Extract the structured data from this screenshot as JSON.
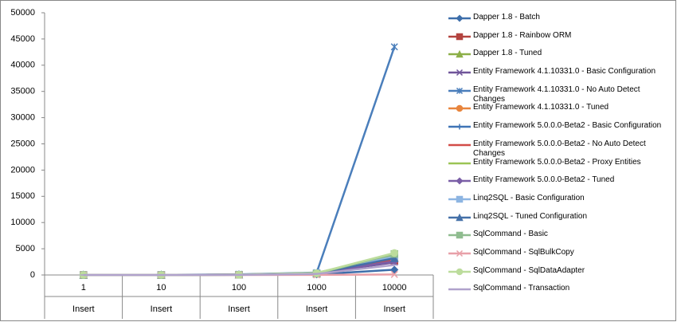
{
  "chart_data": {
    "type": "line",
    "categories": [
      "1",
      "10",
      "100",
      "1000",
      "10000"
    ],
    "category_groups": [
      "Insert",
      "Insert",
      "Insert",
      "Insert",
      "Insert"
    ],
    "ylim": [
      0,
      50000
    ],
    "yticks": [
      0,
      5000,
      10000,
      15000,
      20000,
      25000,
      30000,
      35000,
      40000,
      45000,
      50000
    ],
    "grid": false,
    "legend": "right",
    "series": [
      {
        "name": "Dapper 1.8 - Batch",
        "color": "#3d6eaa",
        "marker": "diamond",
        "values": [
          1,
          5,
          40,
          120,
          1000
        ]
      },
      {
        "name": "Dapper 1.8 - Rainbow ORM",
        "color": "#b3433f",
        "marker": "square",
        "values": [
          1,
          5,
          30,
          250,
          2700
        ]
      },
      {
        "name": "Dapper 1.8 - Tuned",
        "color": "#8caf48",
        "marker": "triangle",
        "values": [
          1,
          4,
          30,
          300,
          3300
        ]
      },
      {
        "name": "Entity Framework 4.1.10331.0 - Basic Configuration",
        "color": "#70559a",
        "marker": "x",
        "values": [
          2,
          10,
          60,
          350,
          2400
        ]
      },
      {
        "name": "Entity Framework 4.1.10331.0 - No Auto Detect Changes",
        "color": "#4a7ebb",
        "marker": "star",
        "values": [
          2,
          20,
          120,
          450,
          43500
        ]
      },
      {
        "name": "Entity Framework 4.1.10331.0 - Tuned",
        "color": "#e8853d",
        "marker": "circle",
        "values": [
          2,
          8,
          50,
          300,
          2800
        ]
      },
      {
        "name": "Entity Framework 5.0.0.0-Beta2 - Basic Configuration",
        "color": "#3f74b6",
        "marker": "plus",
        "values": [
          2,
          10,
          60,
          350,
          3000
        ]
      },
      {
        "name": "Entity Framework 5.0.0.0-Beta2 - No Auto Detect Changes",
        "color": "#d24c48",
        "marker": "dash",
        "values": [
          2,
          10,
          60,
          320,
          2900
        ]
      },
      {
        "name": "Entity Framework 5.0.0.0-Beta2 - Proxy Entities",
        "color": "#9bc455",
        "marker": "dash",
        "values": [
          2,
          12,
          70,
          400,
          3800
        ]
      },
      {
        "name": "Entity Framework 5.0.0.0-Beta2 - Tuned",
        "color": "#7a5ea6",
        "marker": "diamond",
        "values": [
          2,
          8,
          50,
          300,
          2600
        ]
      },
      {
        "name": "Linq2SQL - Basic Configuration",
        "color": "#8db5e2",
        "marker": "square",
        "values": [
          2,
          10,
          50,
          350,
          3500
        ]
      },
      {
        "name": "Linq2SQL - Tuned Configuration",
        "color": "#4470a8",
        "marker": "triangle",
        "values": [
          2,
          8,
          40,
          300,
          3200
        ]
      },
      {
        "name": "SqlCommand - Basic",
        "color": "#8fbc8f",
        "marker": "square",
        "values": [
          1,
          5,
          30,
          250,
          4000
        ]
      },
      {
        "name": "SqlCommand - SqlBulkCopy",
        "color": "#e8a0a8",
        "marker": "x",
        "values": [
          1,
          2,
          5,
          20,
          100
        ]
      },
      {
        "name": "SqlCommand - SqlDataAdapter",
        "color": "#bcdc9c",
        "marker": "circle",
        "values": [
          1,
          6,
          40,
          350,
          4200
        ]
      },
      {
        "name": "SqlCommand - Transaction",
        "color": "#b0a2cc",
        "marker": "dash",
        "values": [
          1,
          4,
          25,
          200,
          1900
        ]
      }
    ]
  }
}
